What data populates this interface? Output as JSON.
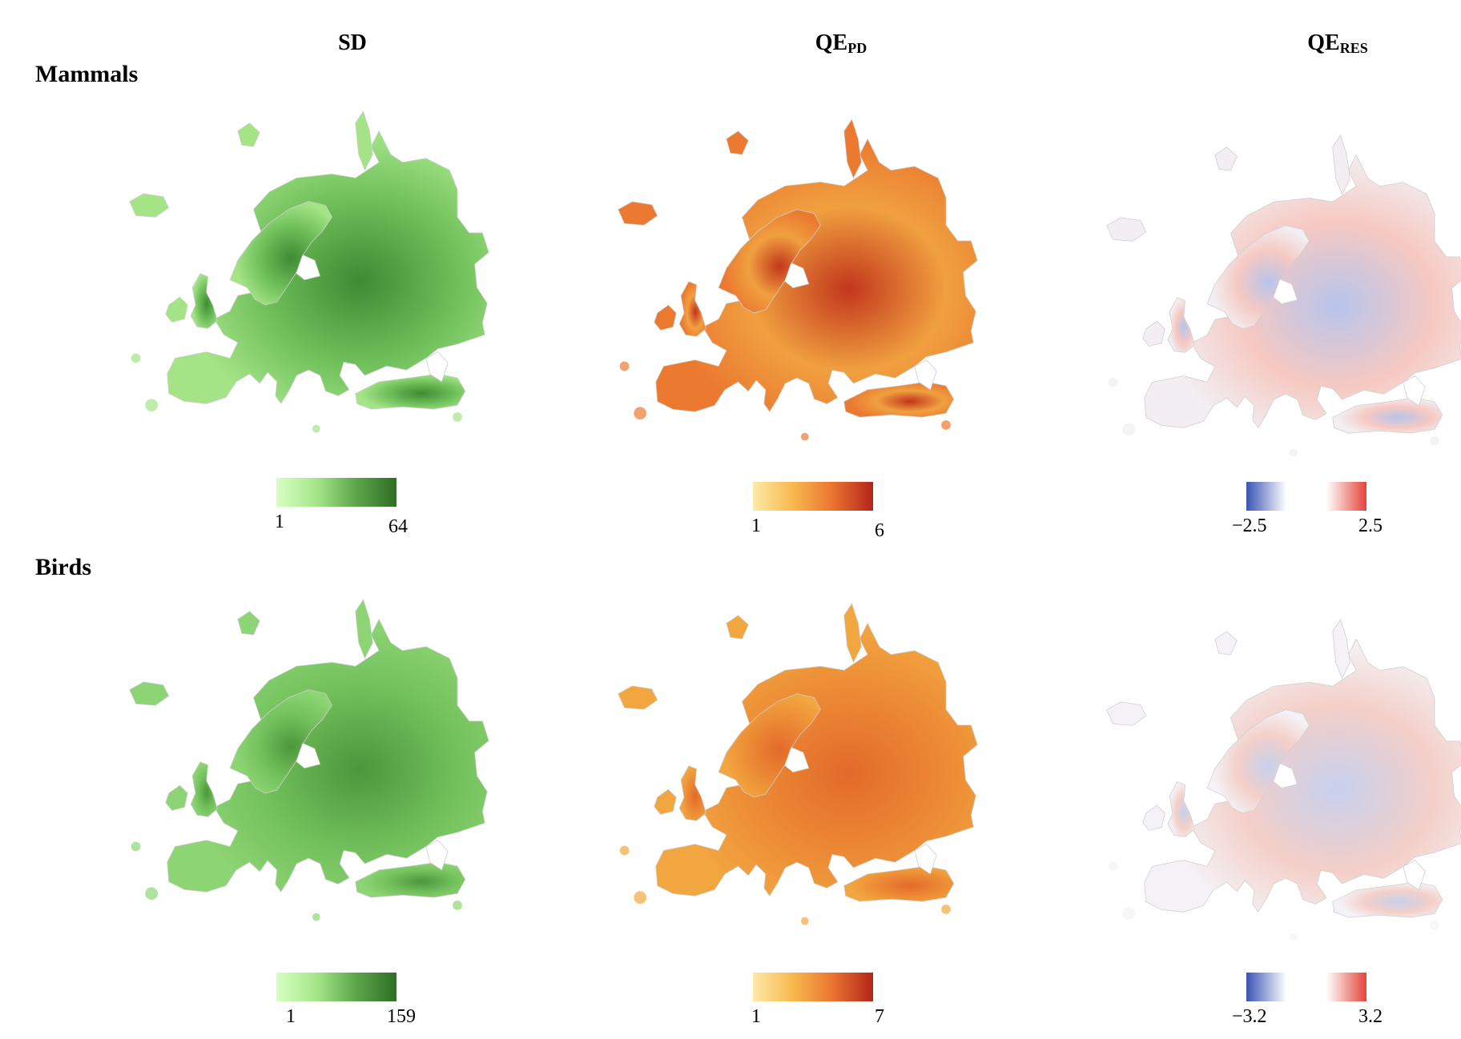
{
  "columns": [
    {
      "base": "SD",
      "sub": ""
    },
    {
      "base": "QE",
      "sub": "PD"
    },
    {
      "base": "QE",
      "sub": "RES"
    }
  ],
  "rows": [
    {
      "title": "Mammals",
      "legends": [
        {
          "min": "1",
          "max": "64",
          "ramp": [
            "#d7ffc4",
            "#a6e68a",
            "#5ca54a",
            "#2f6e26"
          ]
        },
        {
          "min": "1",
          "max": "6",
          "ramp": [
            "#fde9a8",
            "#f8b94e",
            "#ea7330",
            "#b3251a"
          ]
        },
        {
          "min": "−2.5",
          "max": "2.5",
          "ramp": [
            "#3a54b3",
            "#ffffff",
            "#ffffff",
            "#e5433a"
          ]
        }
      ]
    },
    {
      "title": "Birds",
      "legends": [
        {
          "min": "1",
          "max": "159",
          "ramp": [
            "#d7ffc4",
            "#a6e68a",
            "#5ca54a",
            "#2f6e26"
          ]
        },
        {
          "min": "1",
          "max": "7",
          "ramp": [
            "#fde9a8",
            "#f8b94e",
            "#ea7330",
            "#b3251a"
          ]
        },
        {
          "min": "−3.2",
          "max": "3.2",
          "ramp": [
            "#3a54b3",
            "#ffffff",
            "#ffffff",
            "#e5433a"
          ]
        }
      ]
    }
  ],
  "map_fills": {
    "mammals_sd": {
      "base": "#a4e487",
      "dark": "#3f8a33",
      "mid": "#6fbf5a"
    },
    "mammals_qepd": {
      "base": "#eb7a30",
      "dark": "#c2361c",
      "mid": "#f0a040"
    },
    "mammals_qeres": {
      "base": "#f2eef2",
      "dark": "#b7c4ec",
      "mid": "#f6c9c2"
    },
    "birds_sd": {
      "base": "#8dd574",
      "dark": "#4d963c",
      "mid": "#72c05c"
    },
    "birds_qepd": {
      "base": "#f2a640",
      "dark": "#e26a2a",
      "mid": "#ec8a35"
    },
    "birds_qeres": {
      "base": "#f4f2f6",
      "dark": "#c7d0ee",
      "mid": "#f4cfc8"
    }
  }
}
